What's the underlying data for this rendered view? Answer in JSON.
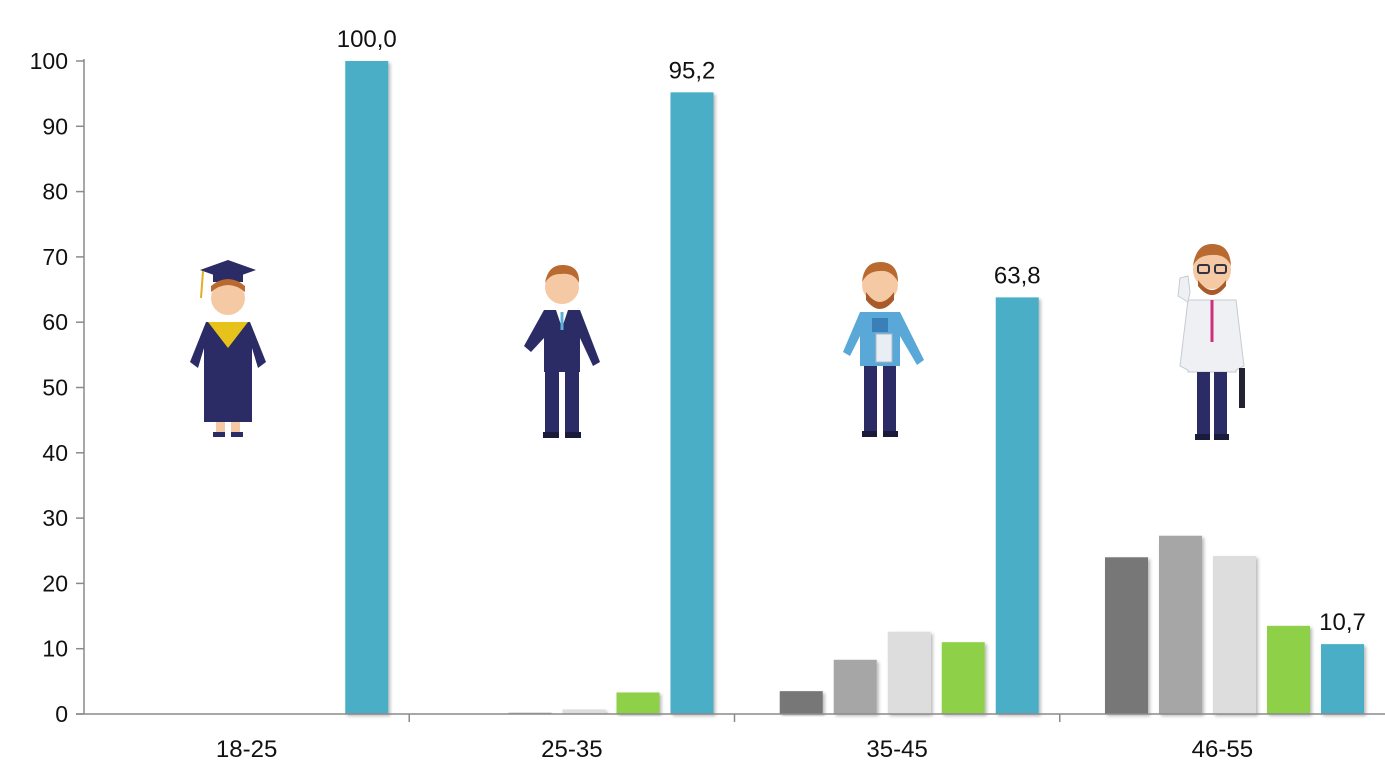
{
  "chart_data": {
    "type": "bar",
    "categories": [
      "18-25",
      "25-35",
      "35-45",
      "46-55"
    ],
    "series": [
      {
        "color": "#777777",
        "values": [
          0,
          0,
          3.5,
          24
        ]
      },
      {
        "color": "#a6a6a6",
        "values": [
          0,
          0.2,
          8.3,
          27.3
        ]
      },
      {
        "color": "#dddddd",
        "values": [
          0,
          0.7,
          12.6,
          24.2
        ]
      },
      {
        "color": "#8ed14a",
        "values": [
          0,
          3.3,
          11,
          13.5
        ]
      },
      {
        "color": "#4aaec6",
        "values": [
          100.0,
          95.2,
          63.8,
          10.7
        ]
      }
    ],
    "data_labels": [
      "100,0",
      "95,2",
      "63,8",
      "10,7"
    ],
    "yticks": [
      "0",
      "10",
      "20",
      "30",
      "40",
      "50",
      "60",
      "70",
      "80",
      "90",
      "100"
    ],
    "ylim": [
      0,
      100
    ],
    "xlabel": "",
    "ylabel": "",
    "grid": false,
    "illustrations": [
      "graduate-figure",
      "businessman-figure",
      "casual-worker-figure",
      "doctor-figure"
    ]
  }
}
